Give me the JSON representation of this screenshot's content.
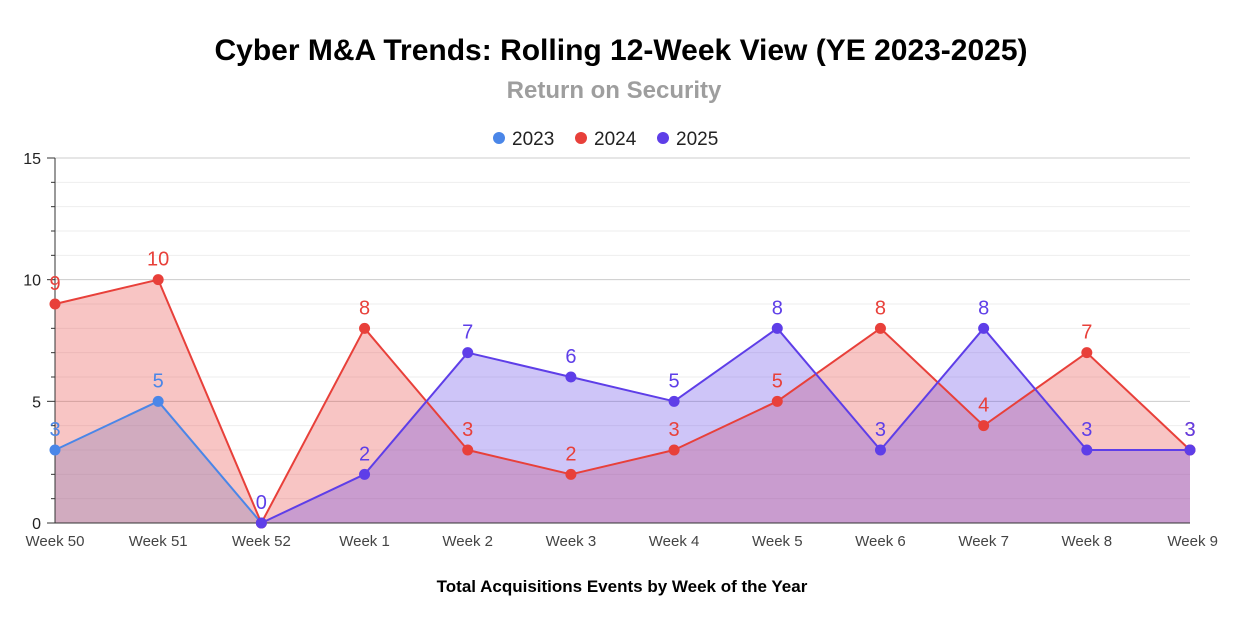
{
  "chart_data": {
    "type": "area",
    "title": "Cyber M&A Trends: Rolling 12-Week View (YE 2023-2025)",
    "subtitle": "Return on Security",
    "xlabel": "Total Acquisitions Events by Week of the Year",
    "ylabel": "",
    "ylim": [
      0,
      15
    ],
    "yticks": [
      0,
      5,
      10,
      15
    ],
    "legend_position": "top-center",
    "categories": [
      "Week 50",
      "Week 51",
      "Week 52",
      "Week 1",
      "Week 2",
      "Week 3",
      "Week 4",
      "Week 5",
      "Week 6",
      "Week 7",
      "Week 8",
      "Week 9"
    ],
    "series": [
      {
        "name": "2023",
        "color": "#4a86e8",
        "values": [
          3,
          5,
          0,
          null,
          null,
          null,
          null,
          null,
          null,
          null,
          null,
          null
        ]
      },
      {
        "name": "2024",
        "color": "#e8403a",
        "values": [
          9,
          10,
          0,
          8,
          3,
          2,
          3,
          5,
          8,
          4,
          7,
          3
        ]
      },
      {
        "name": "2025",
        "color": "#5e3ee8",
        "values": [
          null,
          null,
          0,
          2,
          7,
          6,
          5,
          8,
          3,
          8,
          3,
          3
        ]
      }
    ]
  }
}
